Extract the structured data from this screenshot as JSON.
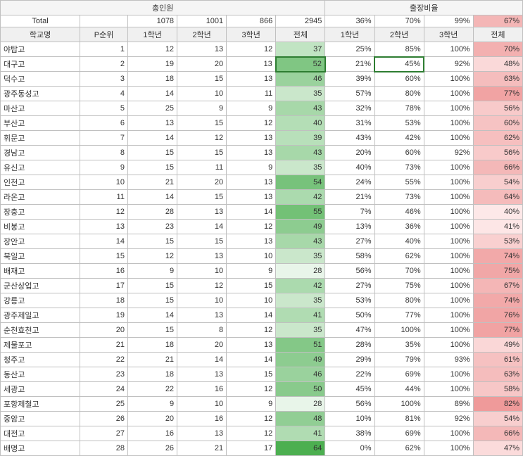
{
  "headers": {
    "group1": "총인원",
    "group2": "출장비율",
    "total_label": "Total",
    "school_label": "학교명",
    "rank_label": "P순위",
    "g1": "1학년",
    "g2": "2학년",
    "g3": "3학년",
    "total_col": "전체"
  },
  "totals": {
    "g1": 1078,
    "g2": 1001,
    "g3": 866,
    "gt": 2945,
    "p1": "36%",
    "p2": "70%",
    "p3": "99%",
    "pt": "67%"
  },
  "colors": {
    "green_min": "#e8f5e9",
    "green_max": "#4caf50",
    "red_min": "#fde8e8",
    "red_max": "#ef9a9a",
    "header_bg": "#f5f5f5",
    "border": "#c0c0c0"
  },
  "total_range": {
    "min": 28,
    "max": 64
  },
  "pct_total_range": {
    "min": 40,
    "max": 82
  },
  "rows": [
    {
      "school": "야탑고",
      "rank": 1,
      "g1": 12,
      "g2": 13,
      "g3": 12,
      "gt": 37,
      "p1": "25%",
      "p2": "85%",
      "p3": "100%",
      "pt": 70
    },
    {
      "school": "대구고",
      "rank": 2,
      "g1": 19,
      "g2": 20,
      "g3": 13,
      "gt": 52,
      "p1": "21%",
      "p2": "45%",
      "p3": "92%",
      "pt": 48,
      "hl": true
    },
    {
      "school": "덕수고",
      "rank": 3,
      "g1": 18,
      "g2": 15,
      "g3": 13,
      "gt": 46,
      "p1": "39%",
      "p2": "60%",
      "p3": "100%",
      "pt": 63
    },
    {
      "school": "광주동성고",
      "rank": 4,
      "g1": 14,
      "g2": 10,
      "g3": 11,
      "gt": 35,
      "p1": "57%",
      "p2": "80%",
      "p3": "100%",
      "pt": 77
    },
    {
      "school": "마산고",
      "rank": 5,
      "g1": 25,
      "g2": 9,
      "g3": 9,
      "gt": 43,
      "p1": "32%",
      "p2": "78%",
      "p3": "100%",
      "pt": 56
    },
    {
      "school": "부산고",
      "rank": 6,
      "g1": 13,
      "g2": 15,
      "g3": 12,
      "gt": 40,
      "p1": "31%",
      "p2": "53%",
      "p3": "100%",
      "pt": 60
    },
    {
      "school": "휘문고",
      "rank": 7,
      "g1": 14,
      "g2": 12,
      "g3": 13,
      "gt": 39,
      "p1": "43%",
      "p2": "42%",
      "p3": "100%",
      "pt": 62
    },
    {
      "school": "경남고",
      "rank": 8,
      "g1": 15,
      "g2": 15,
      "g3": 13,
      "gt": 43,
      "p1": "20%",
      "p2": "60%",
      "p3": "92%",
      "pt": 56
    },
    {
      "school": "유신고",
      "rank": 9,
      "g1": 15,
      "g2": 11,
      "g3": 9,
      "gt": 35,
      "p1": "40%",
      "p2": "73%",
      "p3": "100%",
      "pt": 66
    },
    {
      "school": "인천고",
      "rank": 10,
      "g1": 21,
      "g2": 20,
      "g3": 13,
      "gt": 54,
      "p1": "24%",
      "p2": "55%",
      "p3": "100%",
      "pt": 54
    },
    {
      "school": "라온고",
      "rank": 11,
      "g1": 14,
      "g2": 15,
      "g3": 13,
      "gt": 42,
      "p1": "21%",
      "p2": "73%",
      "p3": "100%",
      "pt": 64
    },
    {
      "school": "장충고",
      "rank": 12,
      "g1": 28,
      "g2": 13,
      "g3": 14,
      "gt": 55,
      "p1": "7%",
      "p2": "46%",
      "p3": "100%",
      "pt": 40
    },
    {
      "school": "비봉고",
      "rank": 13,
      "g1": 23,
      "g2": 14,
      "g3": 12,
      "gt": 49,
      "p1": "13%",
      "p2": "36%",
      "p3": "100%",
      "pt": 41
    },
    {
      "school": "장안고",
      "rank": 14,
      "g1": 15,
      "g2": 15,
      "g3": 13,
      "gt": 43,
      "p1": "27%",
      "p2": "40%",
      "p3": "100%",
      "pt": 53
    },
    {
      "school": "북일고",
      "rank": 15,
      "g1": 12,
      "g2": 13,
      "g3": 10,
      "gt": 35,
      "p1": "58%",
      "p2": "62%",
      "p3": "100%",
      "pt": 74
    },
    {
      "school": "배재고",
      "rank": 16,
      "g1": 9,
      "g2": 10,
      "g3": 9,
      "gt": 28,
      "p1": "56%",
      "p2": "70%",
      "p3": "100%",
      "pt": 75
    },
    {
      "school": "군산상업고",
      "rank": 17,
      "g1": 15,
      "g2": 12,
      "g3": 15,
      "gt": 42,
      "p1": "27%",
      "p2": "75%",
      "p3": "100%",
      "pt": 67
    },
    {
      "school": "강릉고",
      "rank": 18,
      "g1": 15,
      "g2": 10,
      "g3": 10,
      "gt": 35,
      "p1": "53%",
      "p2": "80%",
      "p3": "100%",
      "pt": 74
    },
    {
      "school": "광주제일고",
      "rank": 19,
      "g1": 14,
      "g2": 13,
      "g3": 14,
      "gt": 41,
      "p1": "50%",
      "p2": "77%",
      "p3": "100%",
      "pt": 76
    },
    {
      "school": "순천효천고",
      "rank": 20,
      "g1": 15,
      "g2": 8,
      "g3": 12,
      "gt": 35,
      "p1": "47%",
      "p2": "100%",
      "p3": "100%",
      "pt": 77
    },
    {
      "school": "제물포고",
      "rank": 21,
      "g1": 18,
      "g2": 20,
      "g3": 13,
      "gt": 51,
      "p1": "28%",
      "p2": "35%",
      "p3": "100%",
      "pt": 49
    },
    {
      "school": "청주고",
      "rank": 22,
      "g1": 21,
      "g2": 14,
      "g3": 14,
      "gt": 49,
      "p1": "29%",
      "p2": "79%",
      "p3": "93%",
      "pt": 61
    },
    {
      "school": "동산고",
      "rank": 23,
      "g1": 18,
      "g2": 13,
      "g3": 15,
      "gt": 46,
      "p1": "22%",
      "p2": "69%",
      "p3": "100%",
      "pt": 63
    },
    {
      "school": "세광고",
      "rank": 24,
      "g1": 22,
      "g2": 16,
      "g3": 12,
      "gt": 50,
      "p1": "45%",
      "p2": "44%",
      "p3": "100%",
      "pt": 58
    },
    {
      "school": "포항제철고",
      "rank": 25,
      "g1": 9,
      "g2": 10,
      "g3": 9,
      "gt": 28,
      "p1": "56%",
      "p2": "100%",
      "p3": "89%",
      "pt": 82
    },
    {
      "school": "중암고",
      "rank": 26,
      "g1": 20,
      "g2": 16,
      "g3": 12,
      "gt": 48,
      "p1": "10%",
      "p2": "81%",
      "p3": "92%",
      "pt": 54
    },
    {
      "school": "대전고",
      "rank": 27,
      "g1": 16,
      "g2": 13,
      "g3": 12,
      "gt": 41,
      "p1": "38%",
      "p2": "69%",
      "p3": "100%",
      "pt": 66
    },
    {
      "school": "배명고",
      "rank": 28,
      "g1": 26,
      "g2": 21,
      "g3": 17,
      "gt": 64,
      "p1": "0%",
      "p2": "62%",
      "p3": "100%",
      "pt": 47
    }
  ]
}
